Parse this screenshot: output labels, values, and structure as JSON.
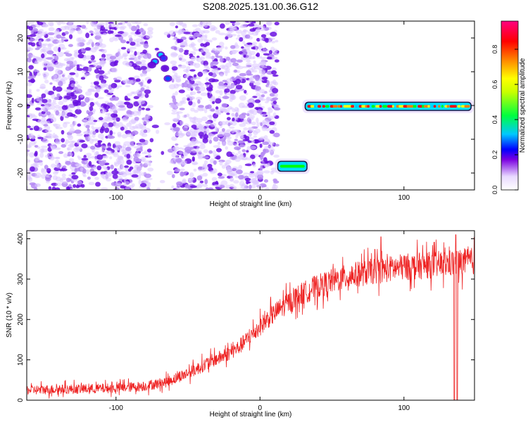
{
  "title": "S208.2025.131.00.36.G12",
  "chart_data": [
    {
      "type": "heatmap",
      "xlabel": "Height of straight line (km)",
      "ylabel": "Frequency (Hz)",
      "xlim": [
        -162,
        149
      ],
      "ylim": [
        -25,
        25
      ],
      "xticks": [
        -100,
        0,
        100
      ],
      "yticks": [
        -20,
        -10,
        0,
        10,
        20
      ],
      "grid": false,
      "colorbar": {
        "label": "Normalized spectral amplitude",
        "range": [
          0,
          0.96
        ],
        "ticks": [
          0,
          0.2,
          0.4,
          0.6,
          0.8
        ],
        "colormap": [
          "#ffffff",
          "#5a00d0",
          "#0000ff",
          "#00c8ff",
          "#00ff00",
          "#ffff00",
          "#ff8000",
          "#ff0000",
          "#ff0080"
        ]
      },
      "features": [
        {
          "x_range": [
            -162,
            12
          ],
          "y_range": [
            -25,
            25
          ],
          "amplitude_range": [
            0.0,
            0.18
          ],
          "pattern": "scattered noise speckle"
        },
        {
          "x_range": [
            -77,
            -60
          ],
          "y_range": [
            6,
            16
          ],
          "amplitude_range": [
            0.1,
            0.25
          ],
          "pattern": "cluster"
        },
        {
          "x_range": [
            12,
            33
          ],
          "y_range": [
            -19,
            -17
          ],
          "amplitude": 0.5,
          "pattern": "horizontal band"
        },
        {
          "x_range": [
            31,
            147
          ],
          "y_range": [
            -1,
            0.5
          ],
          "amplitude_range": [
            0.4,
            0.9
          ],
          "pattern": "horizontal band near 0 Hz"
        }
      ],
      "gaps_x": [
        [
          -75,
          -65
        ],
        [
          -76,
          -61
        ],
        [
          12,
          31
        ]
      ]
    },
    {
      "type": "line",
      "xlabel": "Height of straight line (km)",
      "ylabel": "SNR (10 * v/v)",
      "xlim": [
        -162,
        149
      ],
      "ylim": [
        0,
        420
      ],
      "xticks": [
        -100,
        0,
        100
      ],
      "yticks": [
        0,
        100,
        200,
        300,
        400
      ],
      "grid": false,
      "series": [
        {
          "color": "#ee2222",
          "trend_x": [
            -162,
            -140,
            -120,
            -100,
            -80,
            -65,
            -55,
            -45,
            -35,
            -25,
            -15,
            -5,
            5,
            15,
            25,
            35,
            50,
            65,
            80,
            100,
            120,
            149
          ],
          "trend_y": [
            25,
            27,
            28,
            30,
            35,
            45,
            60,
            75,
            95,
            110,
            130,
            165,
            200,
            230,
            255,
            275,
            295,
            310,
            320,
            330,
            335,
            345
          ],
          "noise_amplitude": 40,
          "dips": [
            {
              "x": 135,
              "y": 0
            },
            {
              "x": 137,
              "y": 0
            }
          ],
          "spikes": [
            {
              "x": 84,
              "y": 405
            },
            {
              "x": 136,
              "y": 410
            }
          ]
        }
      ]
    }
  ]
}
